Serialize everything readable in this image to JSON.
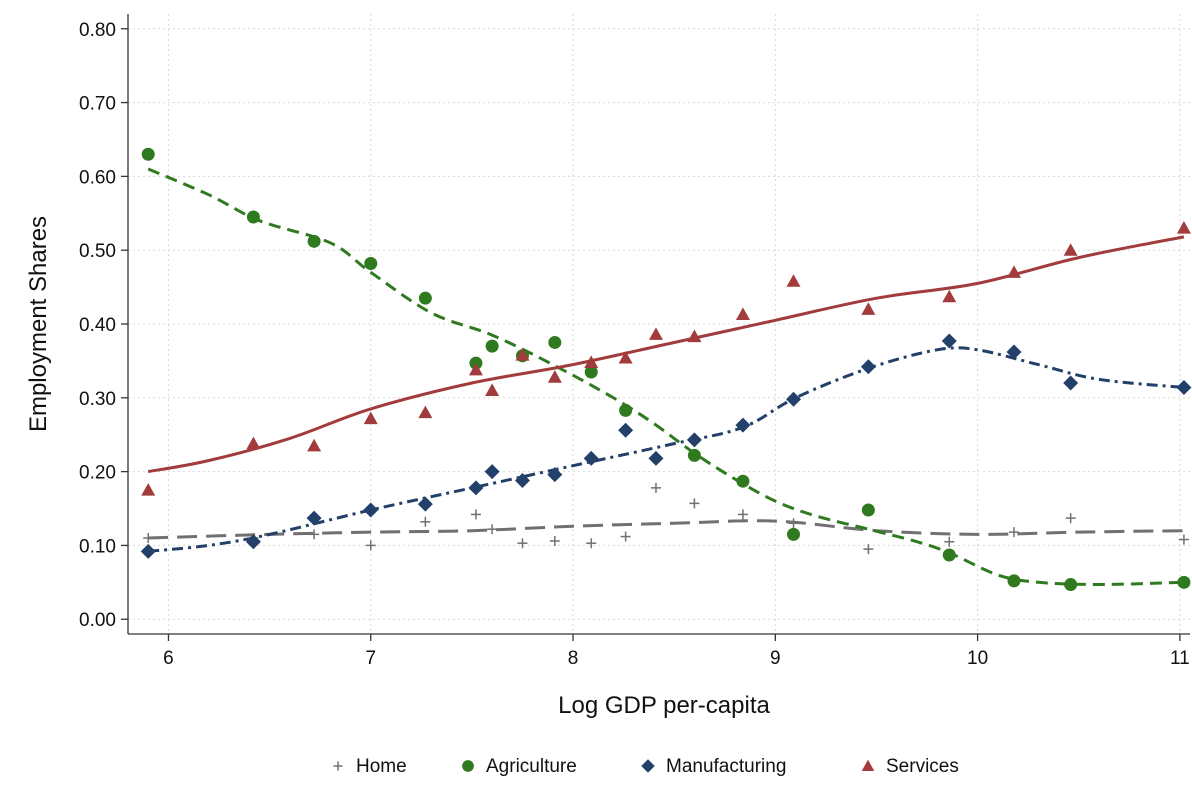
{
  "chart_data": {
    "type": "scatter",
    "title": "",
    "xlabel": "Log GDP per-capita",
    "ylabel": "Employment Shares",
    "xlim": [
      5.8,
      11.05
    ],
    "ylim": [
      -0.02,
      0.82
    ],
    "xticks": [
      6,
      7,
      8,
      9,
      10,
      11
    ],
    "xtick_labels": [
      "6",
      "7",
      "8",
      "9",
      "10",
      "11"
    ],
    "yticks": [
      0,
      0.1,
      0.2,
      0.3,
      0.4,
      0.5,
      0.6,
      0.7,
      0.8
    ],
    "ytick_labels": [
      "0.00",
      "0.10",
      "0.20",
      "0.30",
      "0.40",
      "0.50",
      "0.60",
      "0.70",
      "0.80"
    ],
    "grid": true,
    "legend_position": "bottom",
    "series": [
      {
        "name": "Home",
        "marker": "plus",
        "color": "#707070",
        "line_style": "longdash",
        "points": [
          [
            5.9,
            0.11
          ],
          [
            6.42,
            0.11
          ],
          [
            6.72,
            0.115
          ],
          [
            7.0,
            0.1
          ],
          [
            7.27,
            0.132
          ],
          [
            7.52,
            0.142
          ],
          [
            7.6,
            0.122
          ],
          [
            7.75,
            0.103
          ],
          [
            7.91,
            0.106
          ],
          [
            8.09,
            0.103
          ],
          [
            8.26,
            0.112
          ],
          [
            8.41,
            0.178
          ],
          [
            8.6,
            0.157
          ],
          [
            8.84,
            0.142
          ],
          [
            9.09,
            0.13
          ],
          [
            9.46,
            0.095
          ],
          [
            9.86,
            0.105
          ],
          [
            10.18,
            0.118
          ],
          [
            10.46,
            0.137
          ],
          [
            11.02,
            0.108
          ]
        ],
        "fit": [
          [
            5.9,
            0.11
          ],
          [
            6.5,
            0.115
          ],
          [
            7.0,
            0.118
          ],
          [
            7.5,
            0.12
          ],
          [
            8.0,
            0.126
          ],
          [
            8.5,
            0.13
          ],
          [
            9.0,
            0.133
          ],
          [
            9.5,
            0.12
          ],
          [
            10.0,
            0.115
          ],
          [
            10.5,
            0.118
          ],
          [
            11.02,
            0.12
          ]
        ]
      },
      {
        "name": "Agriculture",
        "marker": "circle",
        "color": "#2f7a1f",
        "line_style": "dash",
        "points": [
          [
            5.9,
            0.63
          ],
          [
            6.42,
            0.545
          ],
          [
            6.72,
            0.512
          ],
          [
            7.0,
            0.482
          ],
          [
            7.27,
            0.435
          ],
          [
            7.52,
            0.347
          ],
          [
            7.6,
            0.37
          ],
          [
            7.75,
            0.357
          ],
          [
            7.91,
            0.375
          ],
          [
            8.09,
            0.335
          ],
          [
            8.26,
            0.283
          ],
          [
            8.6,
            0.222
          ],
          [
            8.84,
            0.187
          ],
          [
            9.09,
            0.115
          ],
          [
            9.46,
            0.148
          ],
          [
            9.86,
            0.087
          ],
          [
            10.18,
            0.052
          ],
          [
            10.46,
            0.047
          ],
          [
            11.02,
            0.05
          ]
        ],
        "fit": [
          [
            5.9,
            0.61
          ],
          [
            6.2,
            0.575
          ],
          [
            6.45,
            0.54
          ],
          [
            6.8,
            0.51
          ],
          [
            7.0,
            0.47
          ],
          [
            7.3,
            0.415
          ],
          [
            7.6,
            0.385
          ],
          [
            7.9,
            0.345
          ],
          [
            8.2,
            0.3
          ],
          [
            8.4,
            0.265
          ],
          [
            8.6,
            0.225
          ],
          [
            8.8,
            0.19
          ],
          [
            9.0,
            0.16
          ],
          [
            9.2,
            0.14
          ],
          [
            9.46,
            0.122
          ],
          [
            9.7,
            0.105
          ],
          [
            9.86,
            0.09
          ],
          [
            10.1,
            0.06
          ],
          [
            10.3,
            0.05
          ],
          [
            10.6,
            0.047
          ],
          [
            11.02,
            0.05
          ]
        ]
      },
      {
        "name": "Manufacturing",
        "marker": "diamond",
        "color": "#23406a",
        "line_style": "dashdot",
        "points": [
          [
            5.9,
            0.092
          ],
          [
            6.42,
            0.105
          ],
          [
            6.72,
            0.137
          ],
          [
            7.0,
            0.148
          ],
          [
            7.27,
            0.156
          ],
          [
            7.52,
            0.178
          ],
          [
            7.6,
            0.2
          ],
          [
            7.75,
            0.188
          ],
          [
            7.91,
            0.196
          ],
          [
            8.09,
            0.218
          ],
          [
            8.26,
            0.256
          ],
          [
            8.41,
            0.218
          ],
          [
            8.6,
            0.243
          ],
          [
            8.84,
            0.263
          ],
          [
            9.09,
            0.298
          ],
          [
            9.46,
            0.342
          ],
          [
            9.86,
            0.377
          ],
          [
            10.18,
            0.362
          ],
          [
            10.46,
            0.32
          ],
          [
            11.02,
            0.314
          ]
        ],
        "fit": [
          [
            5.9,
            0.092
          ],
          [
            6.2,
            0.1
          ],
          [
            6.5,
            0.115
          ],
          [
            7.0,
            0.148
          ],
          [
            7.5,
            0.178
          ],
          [
            8.0,
            0.208
          ],
          [
            8.5,
            0.238
          ],
          [
            8.84,
            0.26
          ],
          [
            9.1,
            0.3
          ],
          [
            9.46,
            0.34
          ],
          [
            9.8,
            0.365
          ],
          [
            10.0,
            0.365
          ],
          [
            10.3,
            0.345
          ],
          [
            10.6,
            0.325
          ],
          [
            11.02,
            0.314
          ]
        ]
      },
      {
        "name": "Services",
        "marker": "triangle",
        "color": "#a23b3b",
        "line_style": "solid",
        "points": [
          [
            5.9,
            0.175
          ],
          [
            6.42,
            0.238
          ],
          [
            6.72,
            0.235
          ],
          [
            7.0,
            0.272
          ],
          [
            7.27,
            0.28
          ],
          [
            7.52,
            0.338
          ],
          [
            7.6,
            0.31
          ],
          [
            7.75,
            0.358
          ],
          [
            7.91,
            0.328
          ],
          [
            8.09,
            0.348
          ],
          [
            8.26,
            0.354
          ],
          [
            8.41,
            0.386
          ],
          [
            8.6,
            0.383
          ],
          [
            8.84,
            0.413
          ],
          [
            9.09,
            0.458
          ],
          [
            9.46,
            0.42
          ],
          [
            9.86,
            0.437
          ],
          [
            10.18,
            0.47
          ],
          [
            10.46,
            0.5
          ],
          [
            11.02,
            0.53
          ]
        ],
        "fit": [
          [
            5.9,
            0.2
          ],
          [
            6.2,
            0.215
          ],
          [
            6.6,
            0.245
          ],
          [
            7.0,
            0.285
          ],
          [
            7.5,
            0.32
          ],
          [
            8.0,
            0.345
          ],
          [
            8.5,
            0.375
          ],
          [
            9.0,
            0.405
          ],
          [
            9.5,
            0.435
          ],
          [
            10.0,
            0.455
          ],
          [
            10.5,
            0.49
          ],
          [
            11.02,
            0.518
          ]
        ]
      }
    ]
  }
}
